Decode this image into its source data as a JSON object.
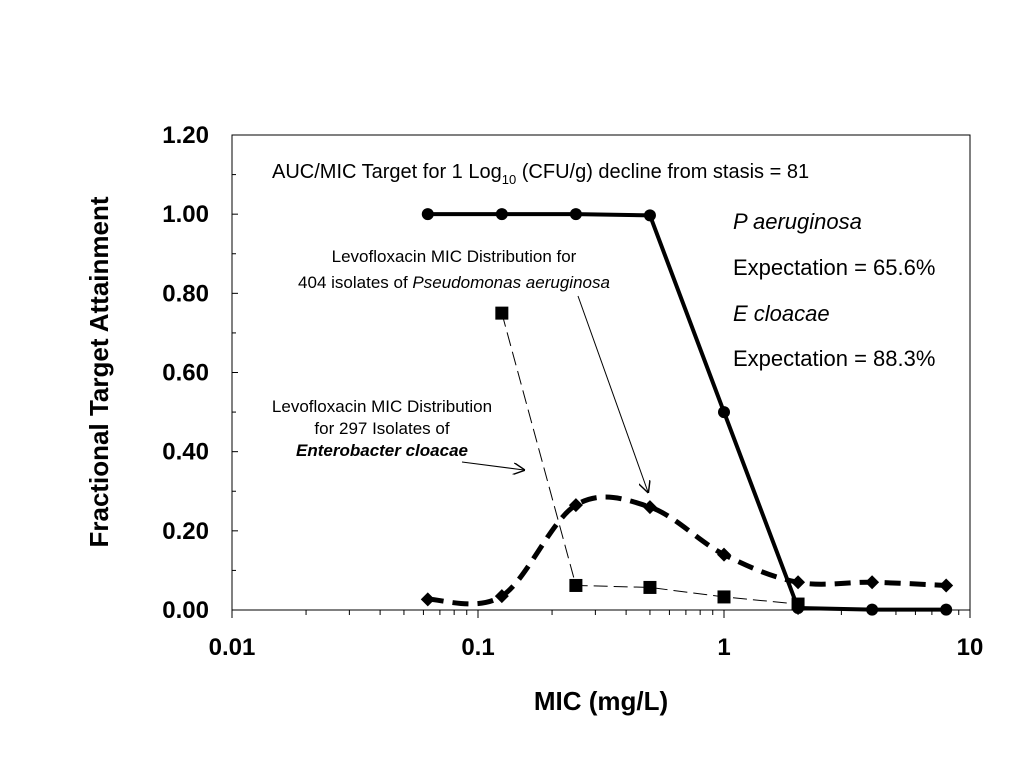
{
  "chart_data": {
    "type": "line",
    "xscale": "log",
    "xlim": [
      0.01,
      10
    ],
    "ylim": [
      0,
      1.2
    ],
    "xticks": [
      "0.01",
      "0.1",
      "1",
      "10"
    ],
    "yticks": [
      "0.00",
      "0.20",
      "0.40",
      "0.60",
      "0.80",
      "1.00",
      "1.20"
    ],
    "xlabel": "MIC (mg/L)",
    "ylabel": "Fractional Target Attainment",
    "title": "AUC/MIC Target for 1 Log10 (CFU/g) decline from stasis = 81",
    "title_parts": {
      "pre": "AUC/MIC Target for 1 Log",
      "sub": "10",
      "post": " (CFU/g) decline from stasis = 81"
    },
    "series": [
      {
        "key": "attainment",
        "style": "solid-thick",
        "marker": "circle",
        "x": [
          0.0625,
          0.125,
          0.25,
          0.5,
          1,
          2,
          4,
          8
        ],
        "y": [
          1.0,
          1.0,
          1.0,
          0.997,
          0.5,
          0.005,
          0.001,
          0.001
        ]
      },
      {
        "key": "pseudomonas",
        "style": "dashed-thick",
        "marker": "diamond",
        "x": [
          0.0625,
          0.125,
          0.25,
          0.5,
          1,
          2,
          4,
          8
        ],
        "y": [
          0.027,
          0.035,
          0.265,
          0.26,
          0.14,
          0.07,
          0.07,
          0.062
        ]
      },
      {
        "key": "enterobacter",
        "style": "dashed-thin",
        "marker": "square",
        "x": [
          0.125,
          0.25,
          0.5,
          1,
          2
        ],
        "y": [
          0.75,
          0.062,
          0.057,
          0.033,
          0.015
        ]
      }
    ],
    "annotations": {
      "pseudomonas_line1": "Levofloxacin MIC Distribution for",
      "pseudomonas_line2_pre": "404 isolates of ",
      "pseudomonas_line2_it": "Pseudomonas  aeruginosa",
      "enterobacter_line1": "Levofloxacin MIC Distribution",
      "enterobacter_line2": "for 297 Isolates of",
      "enterobacter_line3": "Enterobacter cloacae"
    },
    "expectations": {
      "pa_label": "P aeruginosa",
      "pa_value": "Expectation = 65.6%",
      "ec_label": "E cloacae",
      "ec_value": "Expectation = 88.3%"
    }
  }
}
